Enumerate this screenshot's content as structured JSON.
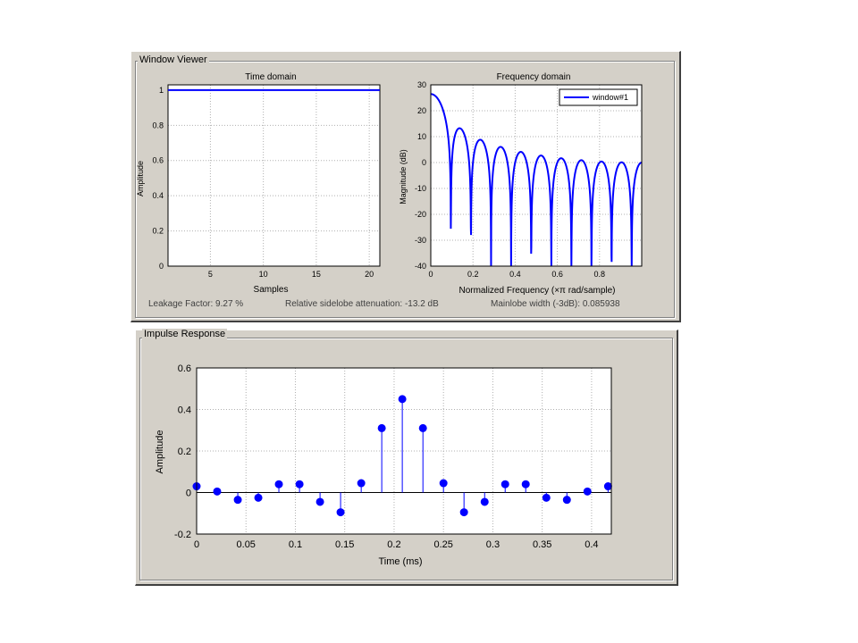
{
  "window_viewer": {
    "title": "Window Viewer",
    "time_domain": {
      "title": "Time domain",
      "xlabel": "Samples",
      "ylabel": "Amplitude",
      "xticks": [
        "5",
        "10",
        "15",
        "20"
      ],
      "yticks": [
        "0",
        "0.2",
        "0.4",
        "0.6",
        "0.8",
        "1"
      ]
    },
    "freq_domain": {
      "title": "Frequency domain",
      "xlabel": "Normalized Frequency  (×π rad/sample)",
      "ylabel": "Magnitude (dB)",
      "xticks": [
        "0",
        "0.2",
        "0.4",
        "0.6",
        "0.8"
      ],
      "yticks": [
        "-40",
        "-30",
        "-20",
        "-10",
        "0",
        "10",
        "20",
        "30"
      ],
      "legend": "window#1"
    },
    "status": {
      "leakage": "Leakage Factor: 9.27 %",
      "sidelobe": "Relative sidelobe attenuation: -13.2 dB",
      "mainlobe": "Mainlobe width (-3dB): 0.085938"
    }
  },
  "impulse_response": {
    "title": "Impulse Response",
    "xlabel": "Time (ms)",
    "ylabel": "Amplitude",
    "xticks": [
      "0",
      "0.05",
      "0.1",
      "0.15",
      "0.2",
      "0.25",
      "0.3",
      "0.35",
      "0.4"
    ],
    "yticks": [
      "-0.2",
      "0",
      "0.2",
      "0.4",
      "0.6"
    ]
  },
  "colors": {
    "line": "#0000ff",
    "panel": "#d4d0c8",
    "grid": "#b0b0b0"
  },
  "chart_data": [
    {
      "type": "line",
      "name": "time-domain",
      "x": [
        1,
        21
      ],
      "y": [
        1,
        1
      ],
      "xlim": [
        1,
        21
      ],
      "ylim": [
        0,
        1.03
      ],
      "grid": true
    },
    {
      "type": "line",
      "name": "frequency-domain",
      "window_length": 21,
      "xlim": [
        0,
        1
      ],
      "ylim": [
        -40,
        30
      ],
      "grid": true,
      "legend_position": "top-right"
    },
    {
      "type": "stem",
      "name": "impulse-response",
      "x": [
        0,
        0.0208,
        0.0417,
        0.0625,
        0.0833,
        0.1042,
        0.125,
        0.1458,
        0.1667,
        0.1875,
        0.2083,
        0.2292,
        0.25,
        0.2708,
        0.2917,
        0.3125,
        0.3333,
        0.3542,
        0.375,
        0.3958,
        0.4167
      ],
      "y": [
        0.03,
        0.005,
        -0.035,
        -0.025,
        0.04,
        0.04,
        -0.045,
        -0.095,
        0.045,
        0.31,
        0.45,
        0.31,
        0.045,
        -0.095,
        -0.045,
        0.04,
        0.04,
        -0.025,
        -0.035,
        0.005,
        0.03
      ],
      "xlim": [
        0,
        0.42
      ],
      "ylim": [
        -0.2,
        0.6
      ],
      "grid": true
    }
  ]
}
